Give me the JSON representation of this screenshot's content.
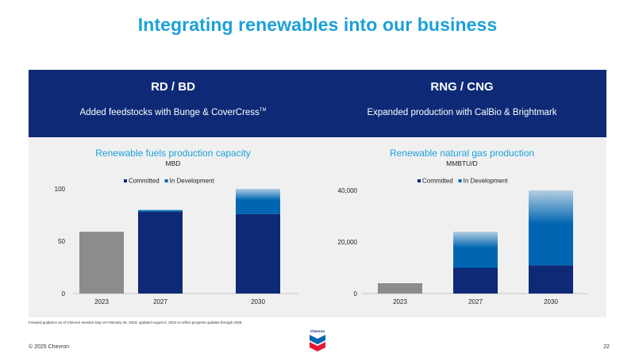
{
  "page": {
    "title": "Integrating renewables into our business",
    "footnote": "Forward guidance as of Chevron Investor Day on February 28, 2023; updated August 5, 2024 to reflect progress updates through 2025.",
    "copyright": "© 2025 Chevron",
    "page_number": "22",
    "logo_text": "Chevron"
  },
  "colors": {
    "title": "#1ba1d8",
    "header_bg": "#0e2a77",
    "panel_bg": "#f0f0f1",
    "historical": "#8c8c8f",
    "committed": "#0e2a77",
    "in_development": "#0066b2"
  },
  "panels": [
    {
      "title": "RD / BD",
      "subtitle": "Added feedstocks with Bunge & CoverCress",
      "subtitle_tm": "TM"
    },
    {
      "title": "RNG / CNG",
      "subtitle": "Expanded production with CalBio & Brightmark"
    }
  ],
  "chart_data": [
    {
      "type": "bar",
      "stacked": true,
      "title": "Renewable fuels production capacity",
      "unit": "MBD",
      "categories": [
        "2023",
        "2027",
        "2030"
      ],
      "series": [
        {
          "name": "Committed",
          "values": [
            null,
            78,
            76
          ],
          "color": "#0e2a77"
        },
        {
          "name": "In Development",
          "values": [
            null,
            2,
            24
          ],
          "color": "#0066b2"
        }
      ],
      "historical": {
        "category": "2023",
        "value": 59,
        "color": "#8c8c8f"
      },
      "yticks": [
        0,
        50,
        100
      ],
      "ytick_labels": [
        "0",
        "50",
        "100"
      ],
      "ylim": [
        0,
        100
      ],
      "legend": "top-center",
      "gridlines": false
    },
    {
      "type": "bar",
      "stacked": true,
      "title": "Renewable natural gas production",
      "unit": "MMBTU/D",
      "categories": [
        "2023",
        "2027",
        "2030"
      ],
      "series": [
        {
          "name": "Committed",
          "values": [
            null,
            10000,
            11000
          ],
          "color": "#0e2a77"
        },
        {
          "name": "In Development",
          "values": [
            null,
            14000,
            29000
          ],
          "color": "#0066b2"
        }
      ],
      "historical": {
        "category": "2023",
        "value": 4000,
        "color": "#8c8c8f"
      },
      "yticks": [
        0,
        20000,
        40000
      ],
      "ytick_labels": [
        "0",
        "20,000",
        "40,000"
      ],
      "ylim": [
        0,
        40000
      ],
      "legend": "top-center",
      "gridlines": false
    }
  ]
}
